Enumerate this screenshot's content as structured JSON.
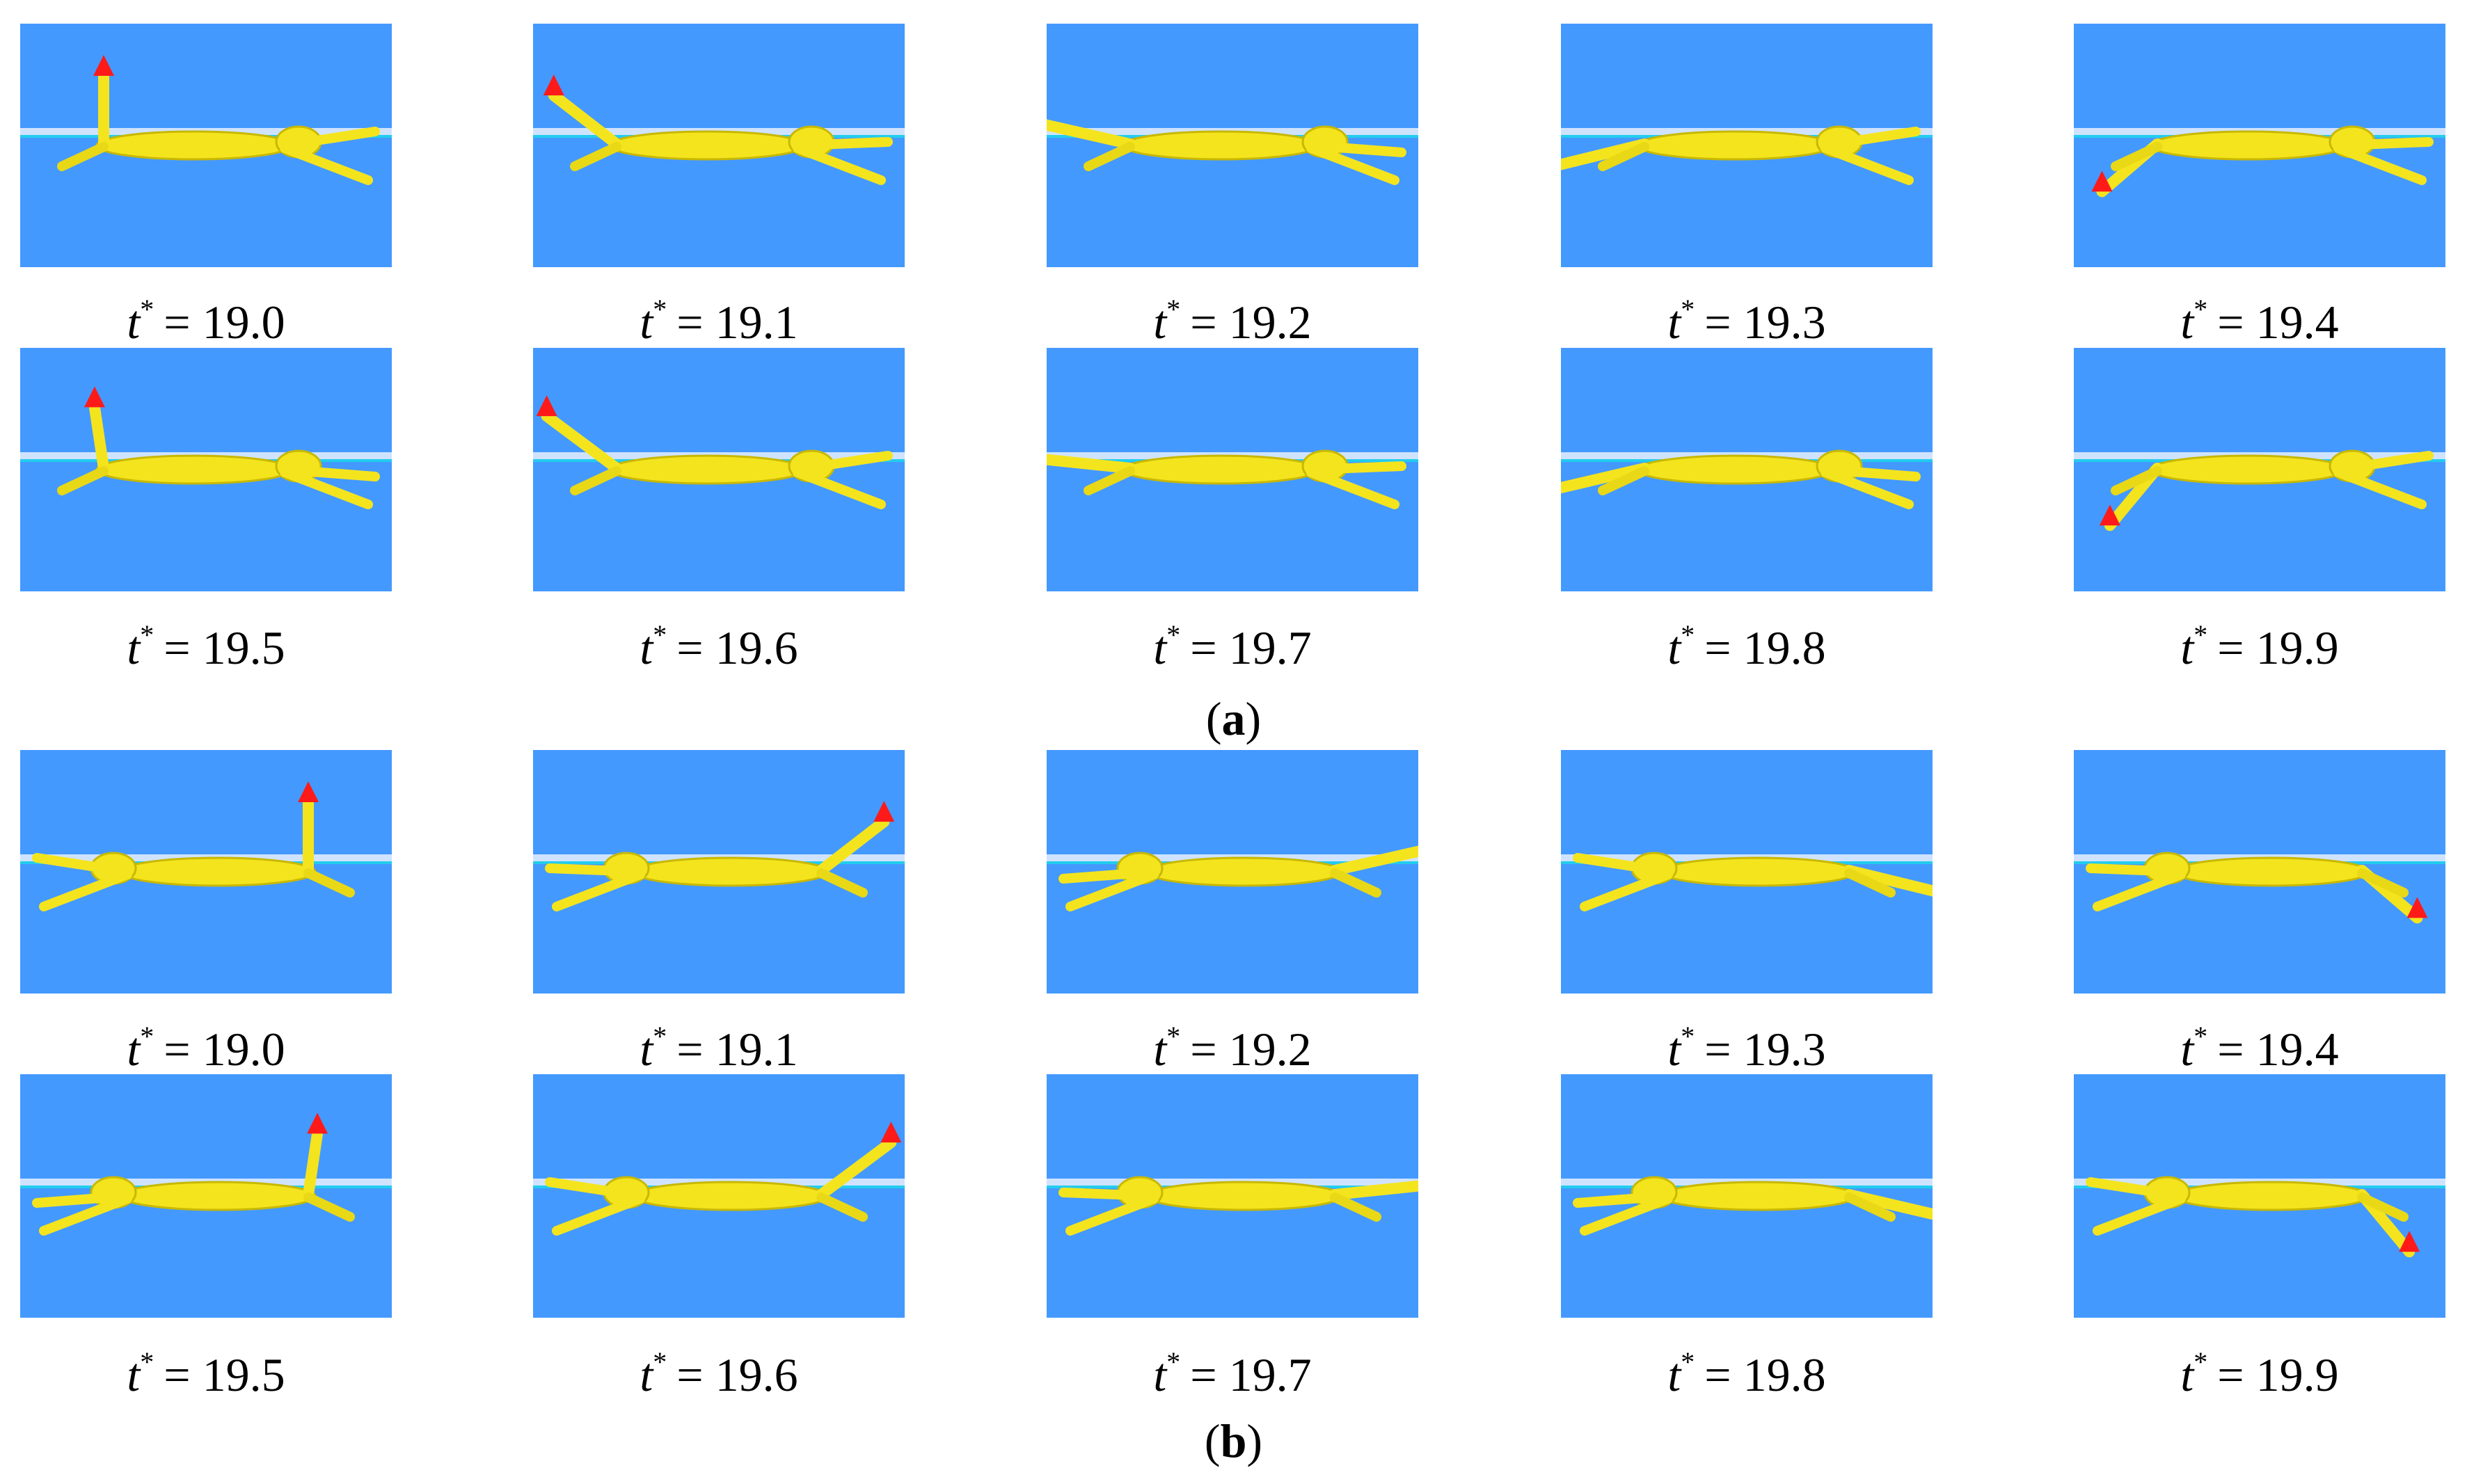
{
  "panels": [
    {
      "caption": {
        "open": "(",
        "letter": "a",
        "close": ")"
      },
      "frames": [
        {
          "label": {
            "var": "t",
            "sup": "*",
            "rest": "= 19.0"
          }
        },
        {
          "label": {
            "var": "t",
            "sup": "*",
            "rest": "= 19.1"
          }
        },
        {
          "label": {
            "var": "t",
            "sup": "*",
            "rest": "= 19.2"
          }
        },
        {
          "label": {
            "var": "t",
            "sup": "*",
            "rest": "= 19.3"
          }
        },
        {
          "label": {
            "var": "t",
            "sup": "*",
            "rest": "= 19.4"
          }
        },
        {
          "label": {
            "var": "t",
            "sup": "*",
            "rest": "= 19.5"
          }
        },
        {
          "label": {
            "var": "t",
            "sup": "*",
            "rest": "= 19.6"
          }
        },
        {
          "label": {
            "var": "t",
            "sup": "*",
            "rest": "= 19.7"
          }
        },
        {
          "label": {
            "var": "t",
            "sup": "*",
            "rest": "= 19.8"
          }
        },
        {
          "label": {
            "var": "t",
            "sup": "*",
            "rest": "= 19.9"
          }
        }
      ]
    },
    {
      "caption": {
        "open": "(",
        "letter": "b",
        "close": ")"
      },
      "frames": [
        {
          "label": {
            "var": "t",
            "sup": "*",
            "rest": "= 19.0"
          }
        },
        {
          "label": {
            "var": "t",
            "sup": "*",
            "rest": "= 19.1"
          }
        },
        {
          "label": {
            "var": "t",
            "sup": "*",
            "rest": "= 19.2"
          }
        },
        {
          "label": {
            "var": "t",
            "sup": "*",
            "rest": "= 19.3"
          }
        },
        {
          "label": {
            "var": "t",
            "sup": "*",
            "rest": "= 19.4"
          }
        },
        {
          "label": {
            "var": "t",
            "sup": "*",
            "rest": "= 19.5"
          }
        },
        {
          "label": {
            "var": "t",
            "sup": "*",
            "rest": "= 19.6"
          }
        },
        {
          "label": {
            "var": "t",
            "sup": "*",
            "rest": "= 19.7"
          }
        },
        {
          "label": {
            "var": "t",
            "sup": "*",
            "rest": "= 19.8"
          }
        },
        {
          "label": {
            "var": "t",
            "sup": "*",
            "rest": "= 19.9"
          }
        }
      ]
    }
  ]
}
